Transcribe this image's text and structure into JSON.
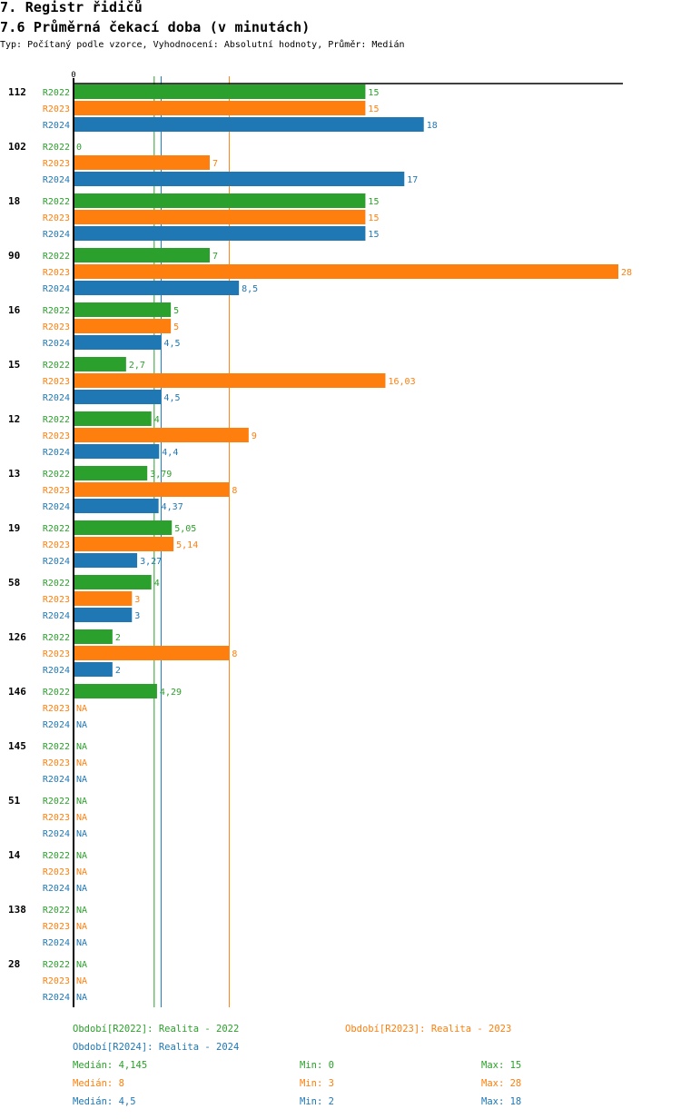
{
  "header": {
    "title": "7. Registr řidičů",
    "subtitle": "7.6 Průměrná čekací doba (v minutách)",
    "meta": "Typ: Počítaný podle vzorce, Vyhodnocení: Absolutní hodnoty, Průměr: Medián"
  },
  "colors": {
    "R2022": "#2ca02c",
    "R2023": "#ff7f0e",
    "R2024": "#1f77b4",
    "axis": "#000000"
  },
  "chart_data": {
    "type": "bar",
    "orientation": "horizontal",
    "title": "7.6 Průměrná čekací doba (v minutách)",
    "x_axis_tick_labels": [
      "0"
    ],
    "xlim": [
      0,
      28
    ],
    "categories": [
      "112",
      "102",
      "18",
      "90",
      "16",
      "15",
      "12",
      "13",
      "19",
      "58",
      "126",
      "146",
      "145",
      "51",
      "14",
      "138",
      "28"
    ],
    "series": [
      {
        "name": "R2022",
        "values": [
          15,
          0,
          15,
          7,
          5,
          2.7,
          4,
          3.79,
          5.05,
          4,
          2,
          4.29,
          null,
          null,
          null,
          null,
          null
        ],
        "labels": [
          "15",
          "0",
          "15",
          "7",
          "5",
          "2,7",
          "4",
          "3,79",
          "5,05",
          "4",
          "2",
          "4,29",
          "NA",
          "NA",
          "NA",
          "NA",
          "NA"
        ]
      },
      {
        "name": "R2023",
        "values": [
          15,
          7,
          15,
          28,
          5,
          16.03,
          9,
          8,
          5.14,
          3,
          8,
          null,
          null,
          null,
          null,
          null,
          null
        ],
        "labels": [
          "15",
          "7",
          "15",
          "28",
          "5",
          "16,03",
          "9",
          "8",
          "5,14",
          "3",
          "8",
          "NA",
          "NA",
          "NA",
          "NA",
          "NA",
          "NA"
        ]
      },
      {
        "name": "R2024",
        "values": [
          18,
          17,
          15,
          8.5,
          4.5,
          4.5,
          4.4,
          4.37,
          3.27,
          3,
          2,
          null,
          null,
          null,
          null,
          null,
          null
        ],
        "labels": [
          "18",
          "17",
          "15",
          "8,5",
          "4,5",
          "4,5",
          "4,4",
          "4,37",
          "3,27",
          "3",
          "2",
          "NA",
          "NA",
          "NA",
          "NA",
          "NA",
          "NA"
        ]
      }
    ],
    "reference_lines": [
      {
        "series": "R2022",
        "type": "median",
        "value": 4.145
      },
      {
        "series": "R2024",
        "type": "median",
        "value": 4.5
      },
      {
        "series": "R2023",
        "type": "median",
        "value": 8
      }
    ],
    "legend": {
      "position": "bottom",
      "entries": [
        {
          "series": "R2022",
          "label": "Období[R2022]: Realita - 2022"
        },
        {
          "series": "R2023",
          "label": "Období[R2023]: Realita - 2023"
        },
        {
          "series": "R2024",
          "label": "Období[R2024]: Realita - 2024"
        }
      ]
    },
    "stats": [
      {
        "series": "R2022",
        "median": "Medián: 4,145",
        "min": "Min: 0",
        "max": "Max: 15"
      },
      {
        "series": "R2023",
        "median": "Medián: 8",
        "min": "Min: 3",
        "max": "Max: 28"
      },
      {
        "series": "R2024",
        "median": "Medián: 4,5",
        "min": "Min: 2",
        "max": "Max: 18"
      }
    ]
  }
}
